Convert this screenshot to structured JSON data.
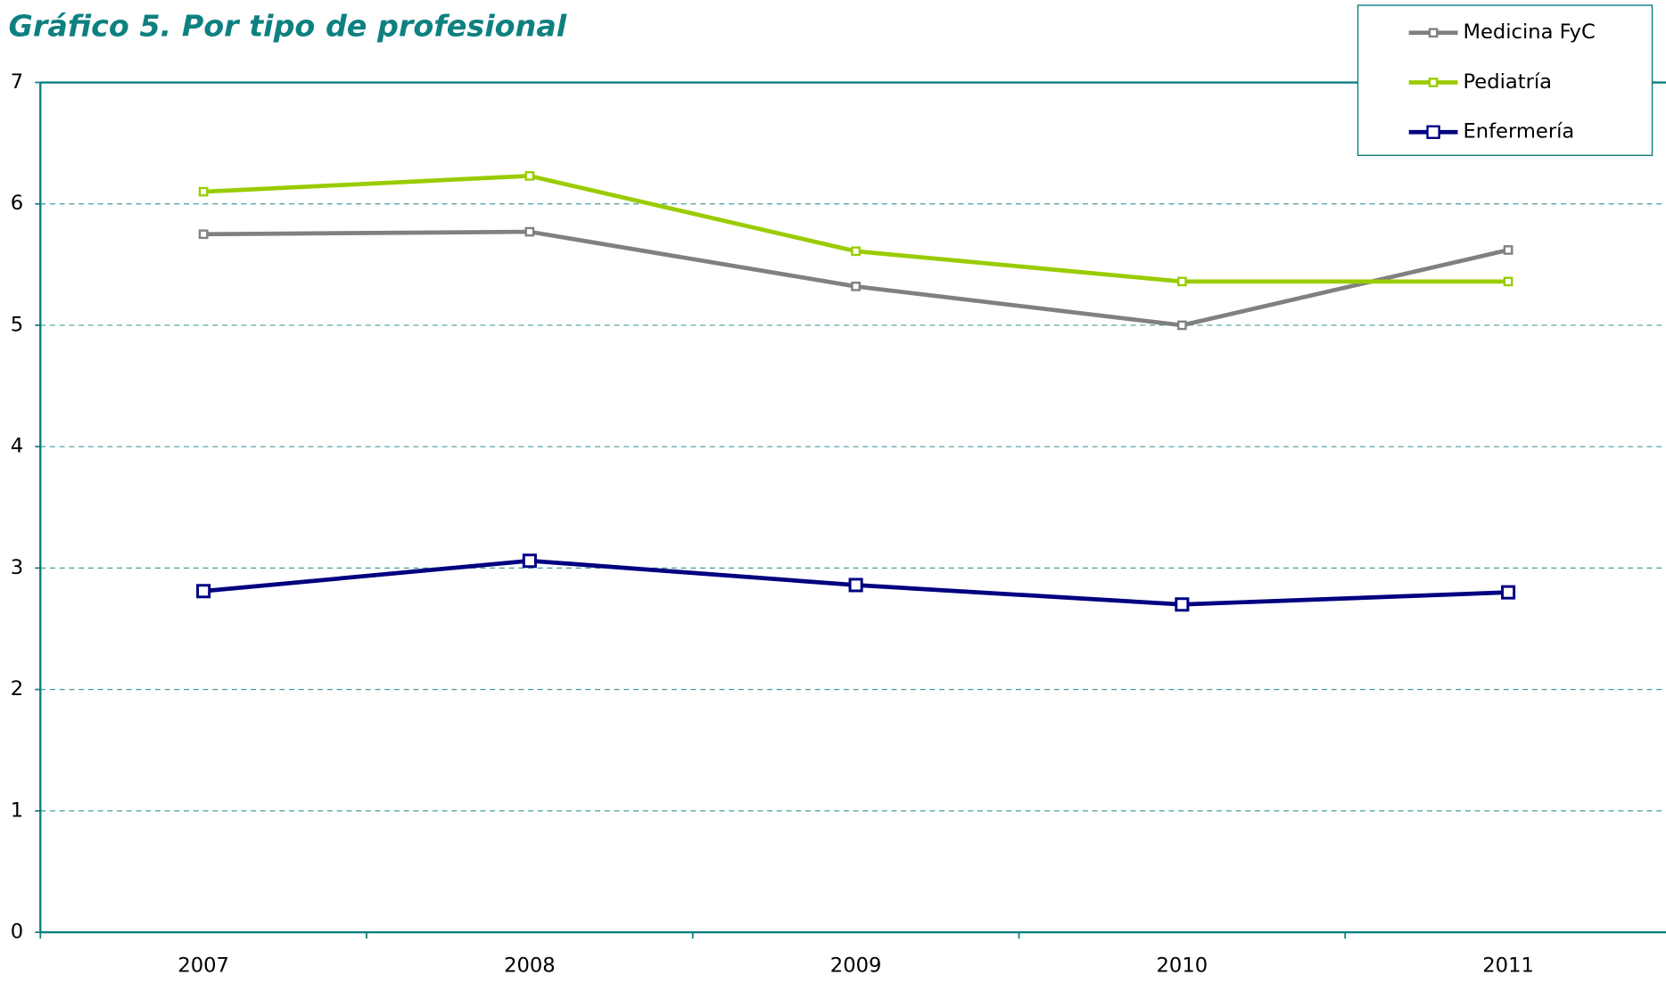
{
  "chart_data": {
    "type": "line",
    "title": "Gráfico 5. Por tipo de profesional",
    "categories": [
      "2007",
      "2008",
      "2009",
      "2010",
      "2011"
    ],
    "series": [
      {
        "name": "Medicina FyC",
        "color": "#808080",
        "values": [
          5.75,
          5.77,
          5.32,
          5.0,
          5.62
        ]
      },
      {
        "name": "Pediatría",
        "color": "#99cc00",
        "values": [
          6.1,
          6.23,
          5.61,
          5.36,
          5.36
        ]
      },
      {
        "name": "Enfermería",
        "color": "#000080",
        "values": [
          2.81,
          3.06,
          2.86,
          2.7,
          2.8
        ]
      }
    ],
    "ylim": [
      0,
      7
    ],
    "yticks": [
      0,
      1,
      2,
      3,
      4,
      5,
      6,
      7
    ],
    "grid": true,
    "legend": "top-right"
  }
}
